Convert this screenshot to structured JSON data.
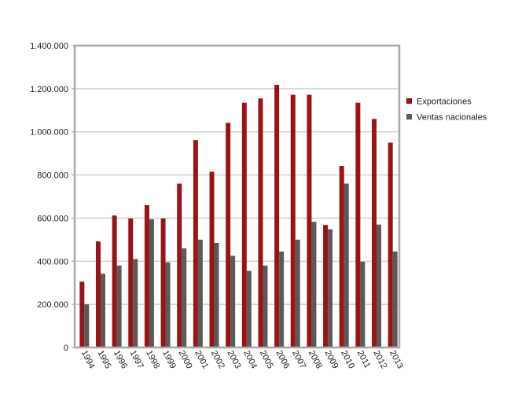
{
  "chart_data": {
    "type": "bar",
    "title": "",
    "xlabel": "",
    "ylabel": "",
    "categories": [
      "1994",
      "1995",
      "1996",
      "1997",
      "1998",
      "1999",
      "2000",
      "2001",
      "2002",
      "2003",
      "2004",
      "2005",
      "2006",
      "2007",
      "2008",
      "2009",
      "2010",
      "2011",
      "2012",
      "2013"
    ],
    "series": [
      {
        "name": "Exportaciones",
        "color": "#9b1219",
        "values": [
          305000,
          492000,
          612000,
          598000,
          660000,
          598000,
          760000,
          962000,
          815000,
          1042000,
          1135000,
          1155000,
          1218000,
          1172000,
          1172000,
          568000,
          842000,
          1135000,
          1060000,
          950000
        ]
      },
      {
        "name": "Ventas nacionales",
        "color": "#5a5a5a",
        "values": [
          200000,
          342000,
          380000,
          410000,
          595000,
          395000,
          460000,
          500000,
          485000,
          425000,
          355000,
          380000,
          445000,
          500000,
          583000,
          548000,
          760000,
          398000,
          570000,
          445000
        ]
      }
    ],
    "y_ticks": [
      "0",
      "200.000",
      "400.000",
      "600.000",
      "800.000",
      "1.000.000",
      "1.200.000",
      "1.400.000"
    ],
    "ylim": [
      0,
      1400000
    ],
    "grid": "horizontal",
    "legend_position": "right"
  }
}
